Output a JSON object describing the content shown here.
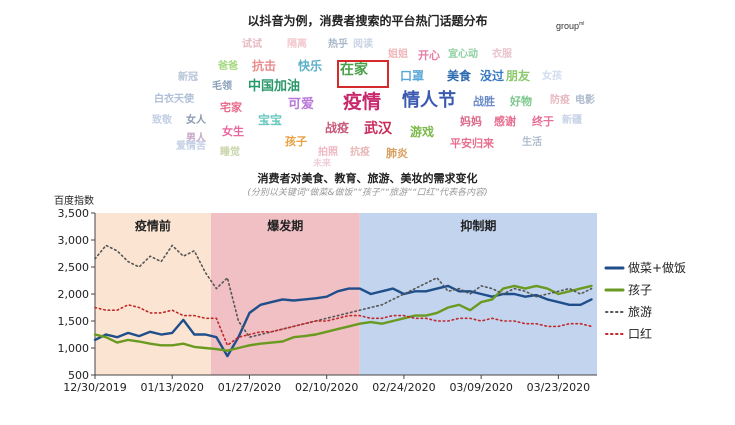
{
  "cloud": {
    "title": "以抖音为例，消费者搜索的平台热门话题分布",
    "brand": "group",
    "brand_sup": "ml",
    "highlighted_word": "在家",
    "highlight_color": "#d62b2b",
    "words": [
      {
        "text": "试试",
        "color": "#e8b8c0",
        "size": 10
      },
      {
        "text": "隔离",
        "color": "#f2c9cf",
        "size": 10
      },
      {
        "text": "热乎",
        "color": "#a9b8c8",
        "size": 10
      },
      {
        "text": "阅读",
        "color": "#c9d4e6",
        "size": 10
      },
      {
        "text": "姐姐",
        "color": "#f0b4b8",
        "size": 10
      },
      {
        "text": "开心",
        "color": "#e87ea8",
        "size": 11
      },
      {
        "text": "宜心动",
        "color": "#8ed0a0",
        "size": 10
      },
      {
        "text": "衣服",
        "color": "#e8c4cc",
        "size": 10
      },
      {
        "text": "爸爸",
        "color": "#a4d87c",
        "size": 10
      },
      {
        "text": "抗击",
        "color": "#e88c8c",
        "size": 12
      },
      {
        "text": "快乐",
        "color": "#5ab0c8",
        "size": 12
      },
      {
        "text": "在家",
        "color": "#4aa04a",
        "size": 14
      },
      {
        "text": "口罩",
        "color": "#5aa8d8",
        "size": 12
      },
      {
        "text": "美食",
        "color": "#2a6ab0",
        "size": 12
      },
      {
        "text": "没过",
        "color": "#3a7ac0",
        "size": 12
      },
      {
        "text": "朋友",
        "color": "#8cc86c",
        "size": 12
      },
      {
        "text": "女孩",
        "color": "#d0dcef",
        "size": 10
      },
      {
        "text": "新冠",
        "color": "#b8c4d8",
        "size": 10
      },
      {
        "text": "毛领",
        "color": "#8aa0b8",
        "size": 10
      },
      {
        "text": "中国加油",
        "color": "#2a9a6a",
        "size": 13
      },
      {
        "text": "疫情",
        "color": "#c8286c",
        "size": 19
      },
      {
        "text": "情人节",
        "color": "#3a5ab0",
        "size": 18
      },
      {
        "text": "白衣天使",
        "color": "#b0c0d8",
        "size": 10
      },
      {
        "text": "宅家",
        "color": "#e86a8a",
        "size": 11
      },
      {
        "text": "可爱",
        "color": "#b878d8",
        "size": 13
      },
      {
        "text": "战胜",
        "color": "#6a8ac8",
        "size": 11
      },
      {
        "text": "好物",
        "color": "#7ac88a",
        "size": 11
      },
      {
        "text": "防疫",
        "color": "#e8b8c0",
        "size": 10
      },
      {
        "text": "电影",
        "color": "#b0bcd0",
        "size": 10
      },
      {
        "text": "致敬",
        "color": "#c4d0e4",
        "size": 10
      },
      {
        "text": "女人",
        "color": "#8a9ab0",
        "size": 10
      },
      {
        "text": "宝宝",
        "color": "#6ac8c0",
        "size": 12
      },
      {
        "text": "妈妈",
        "color": "#d86a8a",
        "size": 11
      },
      {
        "text": "感谢",
        "color": "#e87090",
        "size": 11
      },
      {
        "text": "终于",
        "color": "#e8709a",
        "size": 11
      },
      {
        "text": "新疆",
        "color": "#c8d4e8",
        "size": 10
      },
      {
        "text": "女生",
        "color": "#e868a0",
        "size": 11
      },
      {
        "text": "战疫",
        "color": "#c85a7a",
        "size": 12
      },
      {
        "text": "武汉",
        "color": "#c82a5a",
        "size": 14
      },
      {
        "text": "游戏",
        "color": "#7ab848",
        "size": 12
      },
      {
        "text": "男人",
        "color": "#c8a8c8",
        "size": 10
      },
      {
        "text": "孩子",
        "color": "#e8a040",
        "size": 11
      },
      {
        "text": "平安归来",
        "color": "#e87090",
        "size": 11
      },
      {
        "text": "生活",
        "color": "#b0bccc",
        "size": 10
      },
      {
        "text": "爱情苦",
        "color": "#c4d0e4",
        "size": 10
      },
      {
        "text": "睡觉",
        "color": "#c8d4a8",
        "size": 10
      },
      {
        "text": "拍照",
        "color": "#f0b8c4",
        "size": 10
      },
      {
        "text": "抗疫",
        "color": "#e8b8b8",
        "size": 10
      },
      {
        "text": "肺炎",
        "color": "#d8a060",
        "size": 11
      },
      {
        "text": "未来",
        "color": "#f0d0d8",
        "size": 9
      }
    ]
  },
  "chart": {
    "title": "消费者对美食、教育、旅游、美妆的需求变化",
    "subtitle": "(分别以关键词“做菜&做饭”“孩子”“旅游”“口红”代表各内容)",
    "ylabel": "百度指数",
    "phases": [
      {
        "label": "疫情前",
        "color": "#fbe5d2"
      },
      {
        "label": "爆发期",
        "color": "#f0c0c4"
      },
      {
        "label": "抑制期",
        "color": "#c2d4ee"
      }
    ],
    "legend": [
      {
        "label": "做菜+做饭",
        "color": "#1f4e8a",
        "style": "solid"
      },
      {
        "label": "孩子",
        "color": "#6a9a1f",
        "style": "solid"
      },
      {
        "label": "旅游",
        "color": "#555555",
        "style": "dotted"
      },
      {
        "label": "口红",
        "color": "#c0282a",
        "style": "dotted"
      }
    ]
  },
  "chart_data": {
    "type": "line",
    "title": "消费者对美食、教育、旅游、美妆的需求变化",
    "subtitle": "(分别以关键词“做菜&做饭”“孩子”“旅游”“口红”代表各内容)",
    "ylabel": "百度指数",
    "xlabel": "",
    "ylim": [
      500,
      3500
    ],
    "yticks": [
      "500",
      "1,000",
      "1,500",
      "2,000",
      "2,500",
      "3,000",
      "3,500"
    ],
    "xlim": [
      "2019-12-30",
      "2020-03-30"
    ],
    "xticks": [
      "12/30/2019",
      "01/13/2020",
      "01/27/2020",
      "02/10/2020",
      "02/24/2020",
      "03/09/2020",
      "03/23/2020"
    ],
    "phases": [
      {
        "label": "疫情前",
        "from": "2019-12-30",
        "to": "2020-01-20"
      },
      {
        "label": "爆发期",
        "from": "2020-01-20",
        "to": "2020-02-16"
      },
      {
        "label": "抑制期",
        "from": "2020-02-16",
        "to": "2020-03-30"
      }
    ],
    "x": [
      "2019-12-30",
      "2020-01-01",
      "2020-01-03",
      "2020-01-05",
      "2020-01-07",
      "2020-01-09",
      "2020-01-11",
      "2020-01-13",
      "2020-01-15",
      "2020-01-17",
      "2020-01-19",
      "2020-01-21",
      "2020-01-23",
      "2020-01-25",
      "2020-01-27",
      "2020-01-29",
      "2020-01-31",
      "2020-02-02",
      "2020-02-04",
      "2020-02-06",
      "2020-02-08",
      "2020-02-10",
      "2020-02-12",
      "2020-02-14",
      "2020-02-16",
      "2020-02-18",
      "2020-02-20",
      "2020-02-22",
      "2020-02-24",
      "2020-02-26",
      "2020-02-28",
      "2020-03-01",
      "2020-03-03",
      "2020-03-05",
      "2020-03-07",
      "2020-03-09",
      "2020-03-11",
      "2020-03-13",
      "2020-03-15",
      "2020-03-17",
      "2020-03-19",
      "2020-03-21",
      "2020-03-23",
      "2020-03-25",
      "2020-03-27",
      "2020-03-29"
    ],
    "series": [
      {
        "name": "做菜+做饭",
        "values": [
          1150,
          1250,
          1200,
          1280,
          1220,
          1300,
          1250,
          1280,
          1520,
          1250,
          1250,
          1200,
          850,
          1200,
          1650,
          1800,
          1850,
          1900,
          1880,
          1900,
          1920,
          1950,
          2050,
          2100,
          2100,
          2000,
          2050,
          2100,
          2000,
          2050,
          2050,
          2100,
          2150,
          2050,
          2050,
          2000,
          1950,
          2000,
          2000,
          1950,
          1980,
          1900,
          1850,
          1800,
          1800,
          1900
        ]
      },
      {
        "name": "孩子",
        "values": [
          1250,
          1200,
          1100,
          1150,
          1120,
          1080,
          1050,
          1050,
          1080,
          1020,
          1000,
          980,
          950,
          1000,
          1050,
          1080,
          1100,
          1120,
          1200,
          1220,
          1250,
          1300,
          1350,
          1400,
          1450,
          1480,
          1450,
          1500,
          1550,
          1600,
          1600,
          1650,
          1750,
          1800,
          1700,
          1850,
          1900,
          2100,
          2150,
          2100,
          2150,
          2100,
          2000,
          2050,
          2100,
          2150
        ]
      },
      {
        "name": "旅游",
        "values": [
          2650,
          2900,
          2800,
          2600,
          2500,
          2700,
          2600,
          2900,
          2700,
          2800,
          2400,
          2100,
          2300,
          1500,
          1200,
          1250,
          1300,
          1350,
          1400,
          1450,
          1500,
          1550,
          1600,
          1650,
          1700,
          1750,
          1800,
          1900,
          2000,
          2100,
          2200,
          2300,
          2050,
          2100,
          2000,
          2150,
          2100,
          2000,
          2100,
          2050,
          1950,
          2000,
          2050,
          2100,
          2000,
          2100
        ]
      },
      {
        "name": "口红",
        "values": [
          1750,
          1700,
          1700,
          1800,
          1750,
          1650,
          1650,
          1700,
          1600,
          1600,
          1550,
          1550,
          1050,
          1200,
          1250,
          1300,
          1300,
          1350,
          1400,
          1450,
          1500,
          1500,
          1550,
          1600,
          1600,
          1550,
          1550,
          1600,
          1600,
          1550,
          1550,
          1500,
          1500,
          1550,
          1550,
          1500,
          1550,
          1500,
          1500,
          1450,
          1450,
          1400,
          1400,
          1450,
          1450,
          1400
        ]
      }
    ],
    "legend_position": "right",
    "grid": false
  }
}
